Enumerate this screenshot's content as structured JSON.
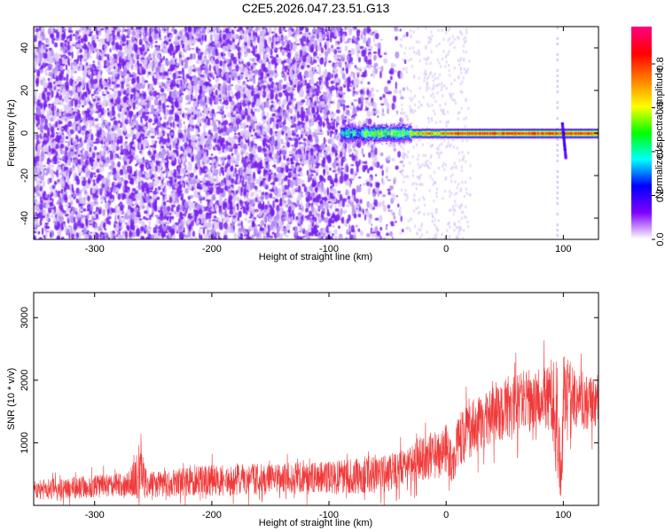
{
  "title": "C2E5.2026.047.23.51.G13",
  "chart_data": [
    {
      "type": "heatmap",
      "xlabel": "Height of straight line (km)",
      "ylabel": "Frequency (Hz)",
      "xlim": [
        -352,
        130
      ],
      "ylim": [
        -50,
        50
      ],
      "xticks": [
        -300,
        -200,
        -100,
        0,
        100
      ],
      "yticks": [
        -40,
        -20,
        0,
        20,
        40
      ],
      "colorbar": {
        "label": "Normalized spectral amplitude",
        "range": [
          0,
          0.97
        ],
        "ticks": [
          "0.0",
          "0.2",
          "0.4",
          "0.6",
          "0.8"
        ],
        "tick_values": [
          0,
          0.2,
          0.4,
          0.6,
          0.8
        ],
        "colormap": [
          "#ffffff",
          "#8000ff",
          "#0000ff",
          "#00ffff",
          "#00ff00",
          "#ffff00",
          "#ff8000",
          "#ff0000",
          "#ff0080"
        ]
      },
      "features": [
        {
          "name": "noise",
          "x_range": [
            -352,
            -30
          ],
          "freq_range": [
            -50,
            50
          ],
          "amplitude": 0.08
        },
        {
          "name": "signal",
          "x_range": [
            -90,
            130
          ],
          "freq": 0,
          "amplitude_peak": 0.97
        },
        {
          "name": "spike",
          "x": 95,
          "freq_range": [
            -12,
            5
          ],
          "amplitude": 0.3
        }
      ]
    },
    {
      "type": "line",
      "xlabel": "Height of straight line (km)",
      "ylabel": "SNR (10 * v/v)",
      "xlim": [
        -352,
        130
      ],
      "ylim": [
        0,
        3400
      ],
      "xticks": [
        -300,
        -200,
        -100,
        0,
        100
      ],
      "yticks": [
        1000,
        2000,
        3000
      ],
      "color": "#f03a3a",
      "series": [
        {
          "x": [
            -352,
            -300,
            -270,
            -262,
            -255,
            -220,
            -200,
            -150,
            -100,
            -60,
            -40,
            -20,
            -10,
            0,
            5,
            10,
            20,
            30,
            50,
            70,
            80,
            90,
            95,
            98,
            100,
            110,
            120,
            130
          ],
          "mean": [
            250,
            300,
            350,
            550,
            320,
            380,
            400,
            420,
            450,
            480,
            560,
            720,
            800,
            900,
            650,
            1000,
            1200,
            1350,
            1550,
            1700,
            1750,
            1700,
            1300,
            300,
            1800,
            1750,
            1650,
            1650
          ],
          "spread": [
            180,
            200,
            220,
            500,
            230,
            260,
            280,
            280,
            300,
            320,
            350,
            400,
            450,
            450,
            350,
            450,
            500,
            500,
            550,
            550,
            550,
            600,
            1200,
            300,
            700,
            550,
            500,
            500
          ]
        }
      ]
    }
  ]
}
